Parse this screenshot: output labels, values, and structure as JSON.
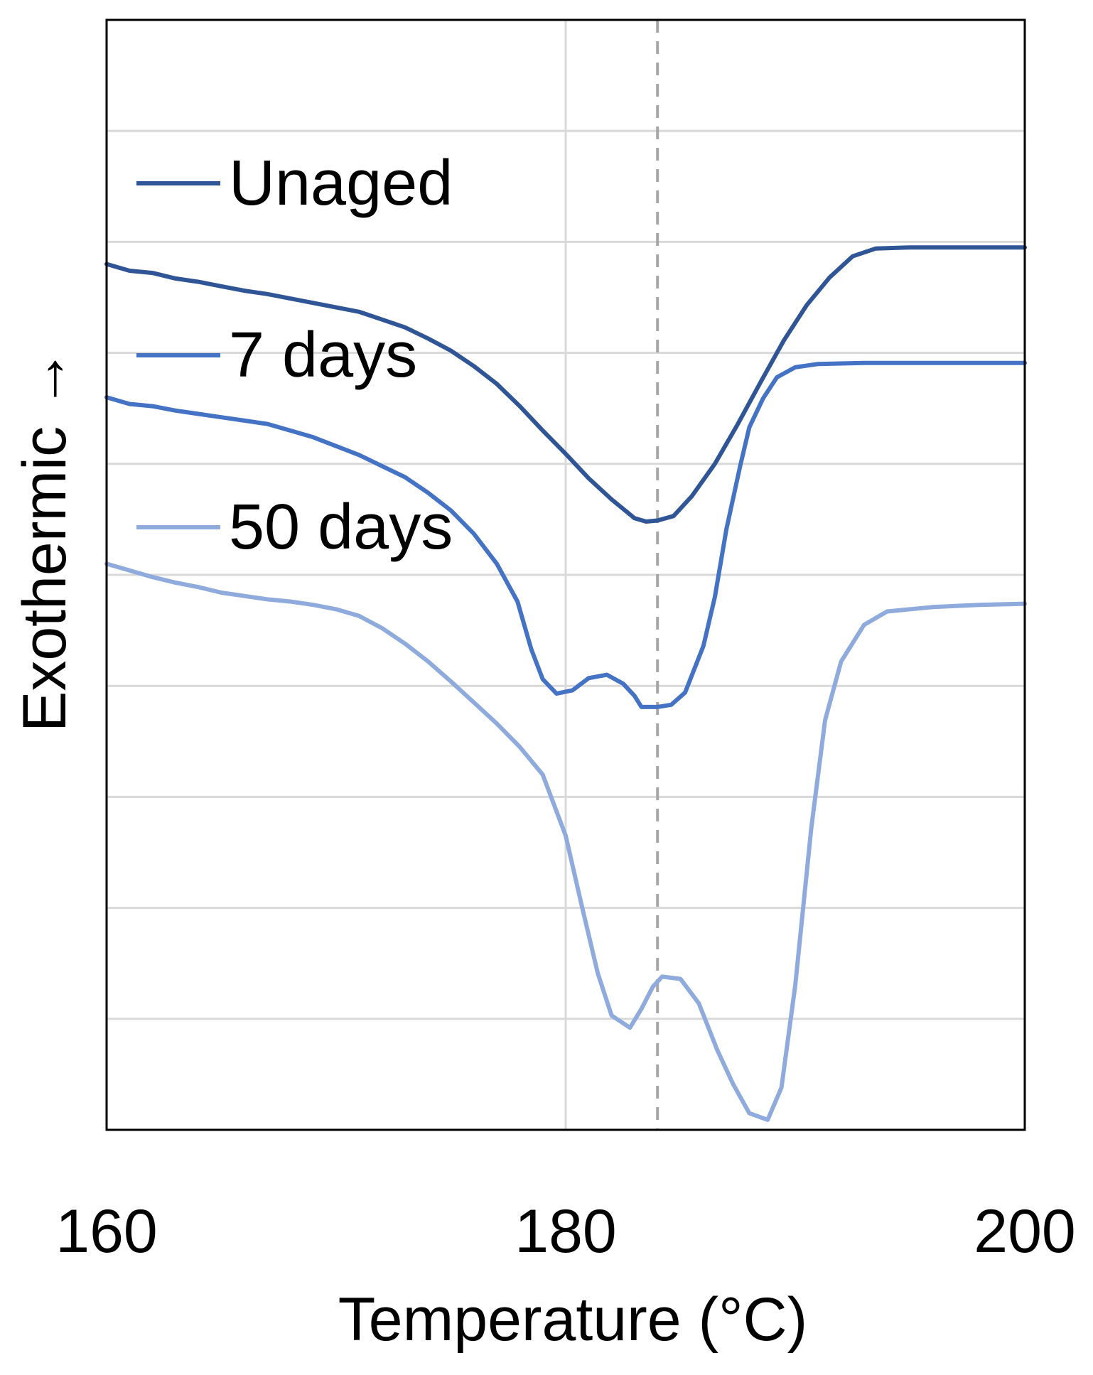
{
  "chart_data": {
    "type": "line",
    "title": "",
    "xlabel": "Temperature (°C)",
    "ylabel": "Exothermic →",
    "xlim": [
      160,
      200
    ],
    "ylim": [
      0,
      10
    ],
    "x_ticks": [
      160,
      180,
      200
    ],
    "x_tick_labels": [
      "160",
      "180",
      "200"
    ],
    "y_tick_labels_shown": false,
    "grid": {
      "horizontal": true,
      "vertical": true
    },
    "reference_line": {
      "x": 184,
      "style": "dashed",
      "color": "#a6a6a6"
    },
    "legend_position": "upper-left",
    "colors": {
      "Unaged": "#2f5597",
      "7 days": "#4472c4",
      "50 days": "#8faadc"
    },
    "series": [
      {
        "name": "Unaged",
        "color": "#2f5597",
        "points": [
          [
            160,
            7.8
          ],
          [
            161,
            7.74
          ],
          [
            162,
            7.72
          ],
          [
            163,
            7.67
          ],
          [
            164,
            7.64
          ],
          [
            165,
            7.6
          ],
          [
            166,
            7.56
          ],
          [
            167,
            7.53
          ],
          [
            168,
            7.49
          ],
          [
            169,
            7.45
          ],
          [
            170,
            7.41
          ],
          [
            171,
            7.37
          ],
          [
            172,
            7.3
          ],
          [
            173,
            7.23
          ],
          [
            174,
            7.13
          ],
          [
            175,
            7.02
          ],
          [
            176,
            6.88
          ],
          [
            177,
            6.72
          ],
          [
            178,
            6.52
          ],
          [
            179,
            6.3
          ],
          [
            180,
            6.09
          ],
          [
            181,
            5.87
          ],
          [
            182,
            5.68
          ],
          [
            183,
            5.51
          ],
          [
            183.5,
            5.48
          ],
          [
            184,
            5.49
          ],
          [
            184.7,
            5.53
          ],
          [
            185.5,
            5.71
          ],
          [
            186.5,
            6.0
          ],
          [
            187.5,
            6.36
          ],
          [
            188.5,
            6.74
          ],
          [
            189.5,
            7.11
          ],
          [
            190.5,
            7.43
          ],
          [
            191.5,
            7.68
          ],
          [
            192.5,
            7.87
          ],
          [
            193.5,
            7.94
          ],
          [
            195,
            7.95
          ],
          [
            197,
            7.95
          ],
          [
            200,
            7.95
          ]
        ]
      },
      {
        "name": "7 days",
        "color": "#4472c4",
        "points": [
          [
            160,
            6.6
          ],
          [
            161,
            6.54
          ],
          [
            162,
            6.52
          ],
          [
            163,
            6.48
          ],
          [
            164,
            6.45
          ],
          [
            165,
            6.42
          ],
          [
            166,
            6.39
          ],
          [
            167,
            6.36
          ],
          [
            168,
            6.3
          ],
          [
            169,
            6.24
          ],
          [
            170,
            6.16
          ],
          [
            171,
            6.08
          ],
          [
            172,
            5.98
          ],
          [
            173,
            5.88
          ],
          [
            174,
            5.74
          ],
          [
            175,
            5.58
          ],
          [
            176,
            5.37
          ],
          [
            177,
            5.1
          ],
          [
            177.9,
            4.76
          ],
          [
            178.5,
            4.33
          ],
          [
            179,
            4.06
          ],
          [
            179.6,
            3.93
          ],
          [
            180.3,
            3.96
          ],
          [
            181,
            4.07
          ],
          [
            181.8,
            4.1
          ],
          [
            182.5,
            4.02
          ],
          [
            183,
            3.91
          ],
          [
            183.3,
            3.81
          ],
          [
            184,
            3.81
          ],
          [
            184.6,
            3.83
          ],
          [
            185.2,
            3.94
          ],
          [
            186,
            4.36
          ],
          [
            186.5,
            4.8
          ],
          [
            187,
            5.41
          ],
          [
            187.6,
            5.98
          ],
          [
            188,
            6.33
          ],
          [
            188.6,
            6.59
          ],
          [
            189.2,
            6.78
          ],
          [
            190,
            6.87
          ],
          [
            191,
            6.9
          ],
          [
            193,
            6.91
          ],
          [
            196,
            6.91
          ],
          [
            200,
            6.91
          ]
        ]
      },
      {
        "name": "50 days",
        "color": "#8faadc",
        "points": [
          [
            160,
            5.1
          ],
          [
            161,
            5.04
          ],
          [
            162,
            4.98
          ],
          [
            163,
            4.93
          ],
          [
            164,
            4.89
          ],
          [
            165,
            4.84
          ],
          [
            166,
            4.81
          ],
          [
            167,
            4.78
          ],
          [
            168,
            4.76
          ],
          [
            169,
            4.73
          ],
          [
            170,
            4.69
          ],
          [
            171,
            4.63
          ],
          [
            172,
            4.52
          ],
          [
            173,
            4.38
          ],
          [
            174,
            4.22
          ],
          [
            175,
            4.04
          ],
          [
            176,
            3.85
          ],
          [
            177,
            3.66
          ],
          [
            178,
            3.45
          ],
          [
            179,
            3.2
          ],
          [
            180,
            2.65
          ],
          [
            180.7,
            2.02
          ],
          [
            181.4,
            1.41
          ],
          [
            182,
            1.03
          ],
          [
            182.8,
            0.92
          ],
          [
            183.3,
            1.09
          ],
          [
            183.8,
            1.29
          ],
          [
            184.2,
            1.38
          ],
          [
            185,
            1.36
          ],
          [
            185.8,
            1.14
          ],
          [
            186.6,
            0.72
          ],
          [
            187.3,
            0.41
          ],
          [
            188,
            0.15
          ],
          [
            188.8,
            0.09
          ],
          [
            189.4,
            0.38
          ],
          [
            190,
            1.3
          ],
          [
            190.7,
            2.72
          ],
          [
            191.3,
            3.69
          ],
          [
            192,
            4.22
          ],
          [
            193,
            4.55
          ],
          [
            194,
            4.67
          ],
          [
            196,
            4.71
          ],
          [
            198,
            4.73
          ],
          [
            200,
            4.74
          ]
        ]
      }
    ]
  }
}
